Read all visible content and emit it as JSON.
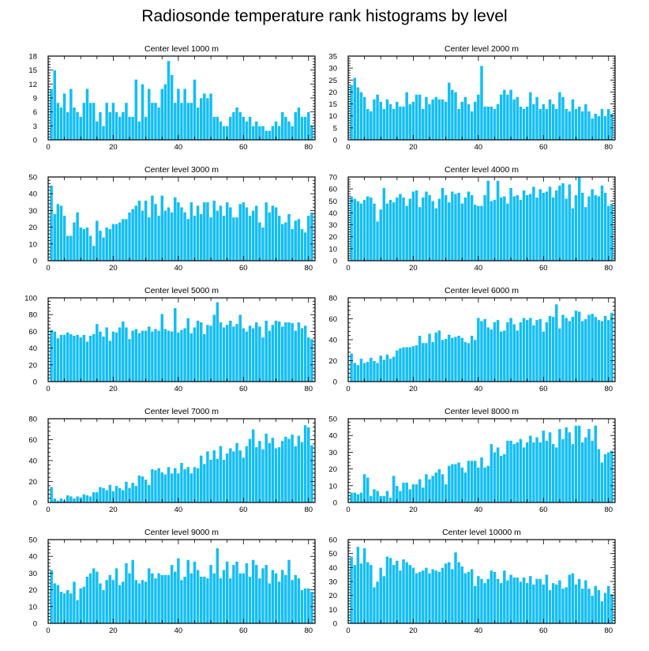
{
  "title": "Radiosonde temperature rank histograms by level",
  "colors": {
    "bar": "#13bef5",
    "bar_edge": "#ffffff",
    "axis": "#000000"
  },
  "chart_data": [
    {
      "type": "bar",
      "title": "Center level 1000 m",
      "x_start": 1,
      "xlim": [
        0,
        82
      ],
      "ylim": [
        0,
        18
      ],
      "xticks": [
        0,
        20,
        40,
        60,
        80
      ],
      "yticks": [
        0,
        3,
        6,
        9,
        12,
        15,
        18
      ],
      "values": [
        11,
        15,
        8,
        7,
        10,
        6,
        11,
        7,
        6,
        5,
        8,
        11,
        8,
        8,
        4,
        6,
        3,
        8,
        6,
        8,
        6,
        5,
        6,
        8,
        5,
        5,
        13,
        4,
        12,
        5,
        11,
        8,
        8,
        7,
        11,
        12,
        17,
        14,
        8,
        11,
        8,
        11,
        8,
        8,
        13,
        7,
        9,
        10,
        9,
        10,
        5,
        5,
        4,
        3,
        3,
        5,
        6,
        7,
        6,
        5,
        4,
        5,
        3,
        4,
        3,
        3,
        2,
        2,
        3,
        4,
        3,
        6,
        5,
        4,
        3,
        6,
        7,
        5,
        5,
        6,
        3
      ]
    },
    {
      "type": "bar",
      "title": "Center level 2000 m",
      "x_start": 1,
      "xlim": [
        0,
        82
      ],
      "ylim": [
        0,
        35
      ],
      "xticks": [
        0,
        20,
        40,
        60,
        80
      ],
      "yticks": [
        0,
        5,
        10,
        15,
        20,
        25,
        30,
        35
      ],
      "values": [
        23,
        26,
        22,
        20,
        18,
        13,
        12,
        17,
        19,
        16,
        13,
        17,
        15,
        13,
        16,
        14,
        14,
        20,
        15,
        16,
        19,
        19,
        13,
        18,
        15,
        17,
        18,
        17,
        17,
        16,
        24,
        21,
        20,
        13,
        16,
        18,
        15,
        12,
        16,
        19,
        31,
        14,
        14,
        14,
        13,
        15,
        19,
        21,
        19,
        21,
        17,
        18,
        14,
        13,
        14,
        20,
        15,
        18,
        13,
        15,
        13,
        17,
        15,
        13,
        20,
        18,
        13,
        12,
        17,
        13,
        14,
        12,
        15,
        12,
        9,
        11,
        10,
        13,
        10,
        13,
        11
      ]
    },
    {
      "type": "bar",
      "title": "Center level 3000 m",
      "x_start": 1,
      "xlim": [
        0,
        82
      ],
      "ylim": [
        0,
        50
      ],
      "xticks": [
        0,
        20,
        40,
        60,
        80
      ],
      "yticks": [
        0,
        10,
        20,
        30,
        40,
        50
      ],
      "values": [
        45,
        28,
        34,
        33,
        27,
        15,
        15,
        23,
        29,
        20,
        19,
        20,
        15,
        9,
        24,
        18,
        14,
        20,
        19,
        22,
        22,
        23,
        25,
        25,
        29,
        31,
        33,
        36,
        30,
        36,
        26,
        39,
        34,
        27,
        39,
        30,
        32,
        29,
        38,
        35,
        32,
        29,
        25,
        35,
        27,
        33,
        28,
        35,
        35,
        26,
        36,
        30,
        33,
        27,
        35,
        32,
        26,
        26,
        34,
        35,
        32,
        27,
        30,
        33,
        23,
        20,
        35,
        29,
        33,
        32,
        27,
        22,
        23,
        28,
        19,
        24,
        25,
        19,
        17,
        27,
        29
      ]
    },
    {
      "type": "bar",
      "title": "Center level 4000 m",
      "x_start": 1,
      "xlim": [
        0,
        82
      ],
      "ylim": [
        0,
        70
      ],
      "xticks": [
        0,
        20,
        40,
        60,
        80
      ],
      "yticks": [
        0,
        10,
        20,
        30,
        40,
        50,
        60,
        70
      ],
      "values": [
        54,
        52,
        50,
        48,
        51,
        54,
        53,
        48,
        33,
        43,
        61,
        48,
        51,
        49,
        53,
        56,
        53,
        46,
        52,
        58,
        59,
        45,
        53,
        58,
        55,
        50,
        44,
        52,
        61,
        55,
        49,
        58,
        56,
        57,
        48,
        53,
        58,
        55,
        47,
        46,
        46,
        55,
        67,
        50,
        51,
        67,
        53,
        54,
        48,
        61,
        54,
        55,
        51,
        59,
        55,
        56,
        62,
        53,
        60,
        57,
        58,
        62,
        53,
        59,
        63,
        65,
        52,
        64,
        44,
        55,
        70,
        57,
        45,
        54,
        60,
        55,
        54,
        63,
        57,
        46,
        48
      ]
    },
    {
      "type": "bar",
      "title": "Center level 5000 m",
      "x_start": 1,
      "xlim": [
        0,
        82
      ],
      "ylim": [
        0,
        100
      ],
      "xticks": [
        0,
        20,
        40,
        60,
        80
      ],
      "yticks": [
        0,
        20,
        40,
        60,
        80,
        100
      ],
      "values": [
        62,
        60,
        52,
        56,
        56,
        59,
        57,
        55,
        56,
        53,
        56,
        48,
        55,
        57,
        69,
        60,
        54,
        65,
        49,
        60,
        59,
        65,
        72,
        65,
        51,
        61,
        63,
        58,
        61,
        61,
        66,
        60,
        63,
        61,
        81,
        63,
        61,
        60,
        88,
        59,
        62,
        64,
        76,
        58,
        65,
        73,
        71,
        57,
        68,
        67,
        80,
        95,
        71,
        65,
        68,
        73,
        66,
        69,
        80,
        64,
        60,
        67,
        64,
        71,
        66,
        53,
        73,
        61,
        68,
        73,
        72,
        66,
        71,
        71,
        70,
        61,
        71,
        64,
        67,
        53,
        51
      ]
    },
    {
      "type": "bar",
      "title": "Center level 6000 m",
      "x_start": 1,
      "xlim": [
        0,
        82
      ],
      "ylim": [
        0,
        80
      ],
      "xticks": [
        0,
        20,
        40,
        60,
        80
      ],
      "yticks": [
        0,
        20,
        40,
        60,
        80
      ],
      "values": [
        27,
        18,
        16,
        22,
        18,
        19,
        23,
        20,
        18,
        25,
        21,
        26,
        22,
        24,
        30,
        32,
        33,
        33,
        33,
        34,
        35,
        44,
        37,
        37,
        46,
        38,
        47,
        49,
        40,
        41,
        45,
        42,
        43,
        44,
        42,
        38,
        37,
        44,
        40,
        61,
        58,
        60,
        52,
        50,
        57,
        59,
        48,
        49,
        57,
        61,
        55,
        49,
        57,
        61,
        59,
        61,
        54,
        59,
        60,
        48,
        57,
        63,
        62,
        74,
        51,
        64,
        61,
        58,
        62,
        68,
        67,
        58,
        60,
        64,
        65,
        62,
        59,
        58,
        63,
        59,
        66
      ]
    },
    {
      "type": "bar",
      "title": "Center level 7000 m",
      "x_start": 1,
      "xlim": [
        0,
        82
      ],
      "ylim": [
        0,
        80
      ],
      "xticks": [
        0,
        20,
        40,
        60,
        80
      ],
      "yticks": [
        0,
        20,
        40,
        60,
        80
      ],
      "values": [
        15,
        4,
        2,
        4,
        2,
        7,
        6,
        4,
        6,
        5,
        8,
        7,
        6,
        10,
        10,
        15,
        14,
        12,
        17,
        11,
        16,
        14,
        12,
        20,
        14,
        19,
        16,
        26,
        25,
        22,
        17,
        32,
        31,
        33,
        29,
        27,
        34,
        28,
        33,
        28,
        38,
        32,
        34,
        28,
        34,
        33,
        45,
        37,
        49,
        41,
        50,
        42,
        54,
        41,
        47,
        52,
        49,
        57,
        50,
        43,
        54,
        61,
        70,
        53,
        59,
        51,
        66,
        57,
        62,
        52,
        53,
        59,
        63,
        61,
        65,
        54,
        64,
        58,
        74,
        72,
        55
      ]
    },
    {
      "type": "bar",
      "title": "Center level 8000 m",
      "x_start": 1,
      "xlim": [
        0,
        82
      ],
      "ylim": [
        0,
        50
      ],
      "xticks": [
        0,
        20,
        40,
        60,
        80
      ],
      "yticks": [
        0,
        10,
        20,
        30,
        40,
        50
      ],
      "values": [
        6,
        6,
        5,
        6,
        17,
        15,
        4,
        8,
        7,
        4,
        4,
        7,
        3,
        16,
        10,
        7,
        12,
        12,
        8,
        11,
        11,
        14,
        9,
        17,
        14,
        16,
        18,
        20,
        17,
        11,
        22,
        23,
        23,
        24,
        21,
        18,
        25,
        25,
        25,
        21,
        27,
        21,
        22,
        35,
        30,
        33,
        28,
        29,
        37,
        37,
        35,
        36,
        38,
        33,
        36,
        40,
        36,
        39,
        36,
        43,
        37,
        42,
        35,
        33,
        44,
        38,
        45,
        42,
        35,
        46,
        46,
        36,
        39,
        44,
        37,
        46,
        32,
        24,
        29,
        30,
        31
      ]
    },
    {
      "type": "bar",
      "title": "Center level 9000 m",
      "x_start": 1,
      "xlim": [
        0,
        82
      ],
      "ylim": [
        0,
        50
      ],
      "xticks": [
        0,
        20,
        40,
        60,
        80
      ],
      "yticks": [
        0,
        10,
        20,
        30,
        40,
        50
      ],
      "values": [
        32,
        24,
        23,
        19,
        18,
        20,
        18,
        25,
        14,
        21,
        22,
        28,
        30,
        33,
        31,
        24,
        20,
        26,
        29,
        26,
        33,
        23,
        25,
        36,
        30,
        38,
        26,
        24,
        26,
        25,
        33,
        30,
        27,
        30,
        29,
        29,
        29,
        35,
        31,
        39,
        26,
        28,
        38,
        30,
        37,
        32,
        28,
        28,
        27,
        35,
        30,
        45,
        27,
        32,
        37,
        27,
        35,
        37,
        30,
        30,
        36,
        28,
        38,
        35,
        27,
        33,
        35,
        24,
        32,
        30,
        25,
        32,
        29,
        38,
        26,
        29,
        27,
        20,
        21,
        21,
        19
      ]
    },
    {
      "type": "bar",
      "title": "Center level 10000 m",
      "x_start": 1,
      "xlim": [
        0,
        82
      ],
      "ylim": [
        0,
        60
      ],
      "xticks": [
        0,
        20,
        40,
        60,
        80
      ],
      "yticks": [
        0,
        10,
        20,
        30,
        40,
        50,
        60
      ],
      "values": [
        48,
        42,
        55,
        43,
        54,
        44,
        42,
        26,
        30,
        40,
        34,
        48,
        47,
        42,
        45,
        38,
        46,
        44,
        42,
        40,
        36,
        37,
        38,
        40,
        36,
        39,
        38,
        37,
        40,
        43,
        44,
        39,
        51,
        44,
        41,
        36,
        37,
        39,
        27,
        34,
        32,
        29,
        32,
        38,
        37,
        32,
        29,
        38,
        31,
        35,
        33,
        33,
        30,
        33,
        29,
        34,
        28,
        32,
        32,
        28,
        35,
        24,
        29,
        28,
        31,
        25,
        26,
        35,
        36,
        28,
        32,
        25,
        31,
        25,
        20,
        27,
        24,
        16,
        22,
        27,
        21
      ]
    }
  ]
}
